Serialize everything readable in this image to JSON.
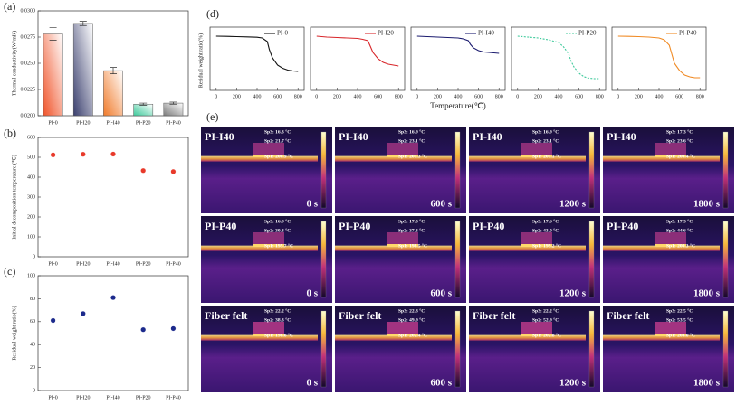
{
  "chart_data": [
    {
      "type": "bar",
      "panel": "(a)",
      "ylabel": "Thermal conductivity(W/mK)",
      "categories": [
        "PI-0",
        "PI-I20",
        "PI-I40",
        "PI-P20",
        "PI-P40"
      ],
      "values": [
        0.0278,
        0.0288,
        0.0243,
        0.0211,
        0.0212
      ],
      "errors": [
        0.0006,
        0.0002,
        0.0003,
        0.0001,
        0.0001
      ],
      "colors": [
        "#f0542a",
        "#3a3f6e",
        "#f07a2a",
        "#3cc99a",
        "#7a7a7a"
      ],
      "ylim": [
        0.02,
        0.03
      ],
      "yticks": [
        {
          "value": 0.02,
          "label": "0.0200"
        },
        {
          "value": 0.0225,
          "label": "0.0225"
        },
        {
          "value": 0.025,
          "label": "0.0250"
        },
        {
          "value": 0.0275,
          "label": "0.0275"
        },
        {
          "value": 0.03,
          "label": "0.0300"
        }
      ]
    },
    {
      "type": "scatter",
      "panel": "(b)",
      "ylabel": "Initial decomposition temperature (℃)",
      "categories": [
        "PI-0",
        "PI-I20",
        "PI-I40",
        "PI-P20",
        "PI-P40"
      ],
      "values": [
        512,
        515,
        516,
        433,
        428
      ],
      "color": "#e8392a",
      "ylim": [
        0,
        600
      ],
      "yticks": [
        0,
        100,
        200,
        300,
        400,
        500,
        600
      ]
    },
    {
      "type": "scatter",
      "panel": "(c)",
      "ylabel": "Residual weight ratio(%)",
      "categories": [
        "PI-0",
        "PI-I20",
        "PI-I40",
        "PI-P20",
        "PI-P40"
      ],
      "values": [
        61,
        67,
        81,
        53,
        54
      ],
      "color": "#1c2a8c",
      "ylim": [
        0,
        100
      ],
      "yticks": [
        0,
        20,
        40,
        60,
        80,
        100
      ]
    },
    {
      "type": "line",
      "panel": "(d)",
      "ylabel": "Residual weight ratio(%)",
      "x": [
        0,
        100,
        200,
        300,
        400,
        450,
        500,
        520,
        550,
        600,
        650,
        700,
        750,
        800
      ],
      "xlim": [
        -60,
        860
      ],
      "xticks": [
        0,
        200,
        400,
        600,
        800
      ],
      "ylim": [
        40,
        110
      ],
      "series": [
        {
          "name": "PI-0",
          "color": "#111111",
          "values": [
            100,
            99.8,
            99.5,
            99.2,
            98.8,
            98,
            94,
            85,
            76,
            68,
            64.5,
            62.5,
            61.5,
            61
          ]
        }
      ]
    },
    {
      "type": "line",
      "x": [
        0,
        100,
        200,
        300,
        400,
        450,
        500,
        520,
        550,
        600,
        650,
        700,
        750,
        800
      ],
      "xlim": [
        -60,
        860
      ],
      "xticks": [
        0,
        200,
        400,
        600,
        800
      ],
      "ylim": [
        40,
        110
      ],
      "series": [
        {
          "name": "PI-I20",
          "color": "#d8262a",
          "values": [
            100,
            99,
            98.5,
            98,
            97.5,
            96.5,
            95,
            90,
            82,
            75,
            71,
            69,
            68,
            67
          ]
        }
      ]
    },
    {
      "type": "line",
      "xlabel": "Temperature(℃)",
      "x": [
        0,
        100,
        200,
        300,
        400,
        450,
        500,
        520,
        550,
        600,
        650,
        700,
        750,
        800
      ],
      "xlim": [
        -60,
        860
      ],
      "xticks": [
        0,
        200,
        400,
        600,
        800
      ],
      "ylim": [
        40,
        110
      ],
      "series": [
        {
          "name": "PI-I40",
          "color": "#1a1a6e",
          "values": [
            100,
            99.5,
            99,
            98.5,
            98,
            97,
            95,
            91,
            87,
            84,
            82.5,
            82,
            81.5,
            81
          ]
        }
      ]
    },
    {
      "type": "line",
      "x": [
        0,
        100,
        200,
        300,
        400,
        450,
        500,
        520,
        550,
        600,
        650,
        700,
        750,
        800
      ],
      "xlim": [
        -60,
        860
      ],
      "xticks": [
        0,
        200,
        400,
        600,
        800
      ],
      "ylim": [
        40,
        110
      ],
      "series": [
        {
          "name": "PI-P20",
          "color": "#3cc99a",
          "dashed": true,
          "values": [
            100,
            99,
            98,
            96,
            93,
            88,
            80,
            73,
            66,
            59,
            55,
            53.5,
            53,
            53
          ]
        }
      ]
    },
    {
      "type": "line",
      "x": [
        0,
        100,
        200,
        300,
        400,
        450,
        500,
        520,
        550,
        600,
        650,
        700,
        750,
        800
      ],
      "xlim": [
        -60,
        860
      ],
      "xticks": [
        0,
        200,
        400,
        600,
        800
      ],
      "ylim": [
        40,
        110
      ],
      "series": [
        {
          "name": "PI-P40",
          "color": "#f08a24",
          "values": [
            100,
            99.8,
            99.5,
            99,
            98,
            96,
            90,
            82,
            70,
            62,
            57,
            55,
            54,
            54
          ]
        }
      ]
    }
  ],
  "thermal_panel": {
    "panel": "(e)",
    "rows": [
      {
        "label": "PI-I40",
        "cells": [
          {
            "time": "0 s",
            "sp3": "Sp3: 16.3 °C",
            "sp2": "Sp2: 21.7 °C",
            "sp1": "Sp1: 200.9 °C"
          },
          {
            "time": "600 s",
            "sp3": "Sp3: 16.9 °C",
            "sp2": "Sp2: 23.1 °C",
            "sp1": "Sp1: 201.3 °C"
          },
          {
            "time": "1200 s",
            "sp3": "Sp3: 16.9 °C",
            "sp2": "Sp2: 23.1 °C",
            "sp1": "Sp1: 201.1 °C"
          },
          {
            "time": "1800 s",
            "sp3": "Sp3: 17.3 °C",
            "sp2": "Sp2: 23.6 °C",
            "sp1": "Sp1: 200.4 °C"
          }
        ]
      },
      {
        "label": "PI-P40",
        "cells": [
          {
            "time": "0 s",
            "sp3": "Sp3: 16.9 °C",
            "sp2": "Sp2: 30.3 °C",
            "sp1": "Sp1: 195.7 °C"
          },
          {
            "time": "600 s",
            "sp3": "Sp3: 17.3 °C",
            "sp2": "Sp2: 37.3 °C",
            "sp1": "Sp1: 198.5 °C"
          },
          {
            "time": "1200 s",
            "sp3": "Sp3: 17.6 °C",
            "sp2": "Sp2: 43.0 °C",
            "sp1": "Sp1: 199.2 °C"
          },
          {
            "time": "1800 s",
            "sp3": "Sp3: 17.3 °C",
            "sp2": "Sp2: 44.6 °C",
            "sp1": "Sp1: 200.3 °C"
          }
        ]
      },
      {
        "label": "Fiber felt",
        "cells": [
          {
            "time": "0 s",
            "sp3": "Sp3: 22.2 °C",
            "sp2": "Sp2: 38.3 °C",
            "sp1": "Sp1: 198.6 °C"
          },
          {
            "time": "600 s",
            "sp3": "Sp3: 22.8 °C",
            "sp2": "Sp2: 49.9 °C",
            "sp1": "Sp1: 202.4 °C"
          },
          {
            "time": "1200 s",
            "sp3": "Sp3: 22.2 °C",
            "sp2": "Sp2: 52.9 °C",
            "sp1": "Sp1: 202.8 °C"
          },
          {
            "time": "1800 s",
            "sp3": "Sp3: 22.5 °C",
            "sp2": "Sp2: 53.5 °C",
            "sp1": "Sp1: 203.0 °C"
          }
        ]
      }
    ]
  }
}
